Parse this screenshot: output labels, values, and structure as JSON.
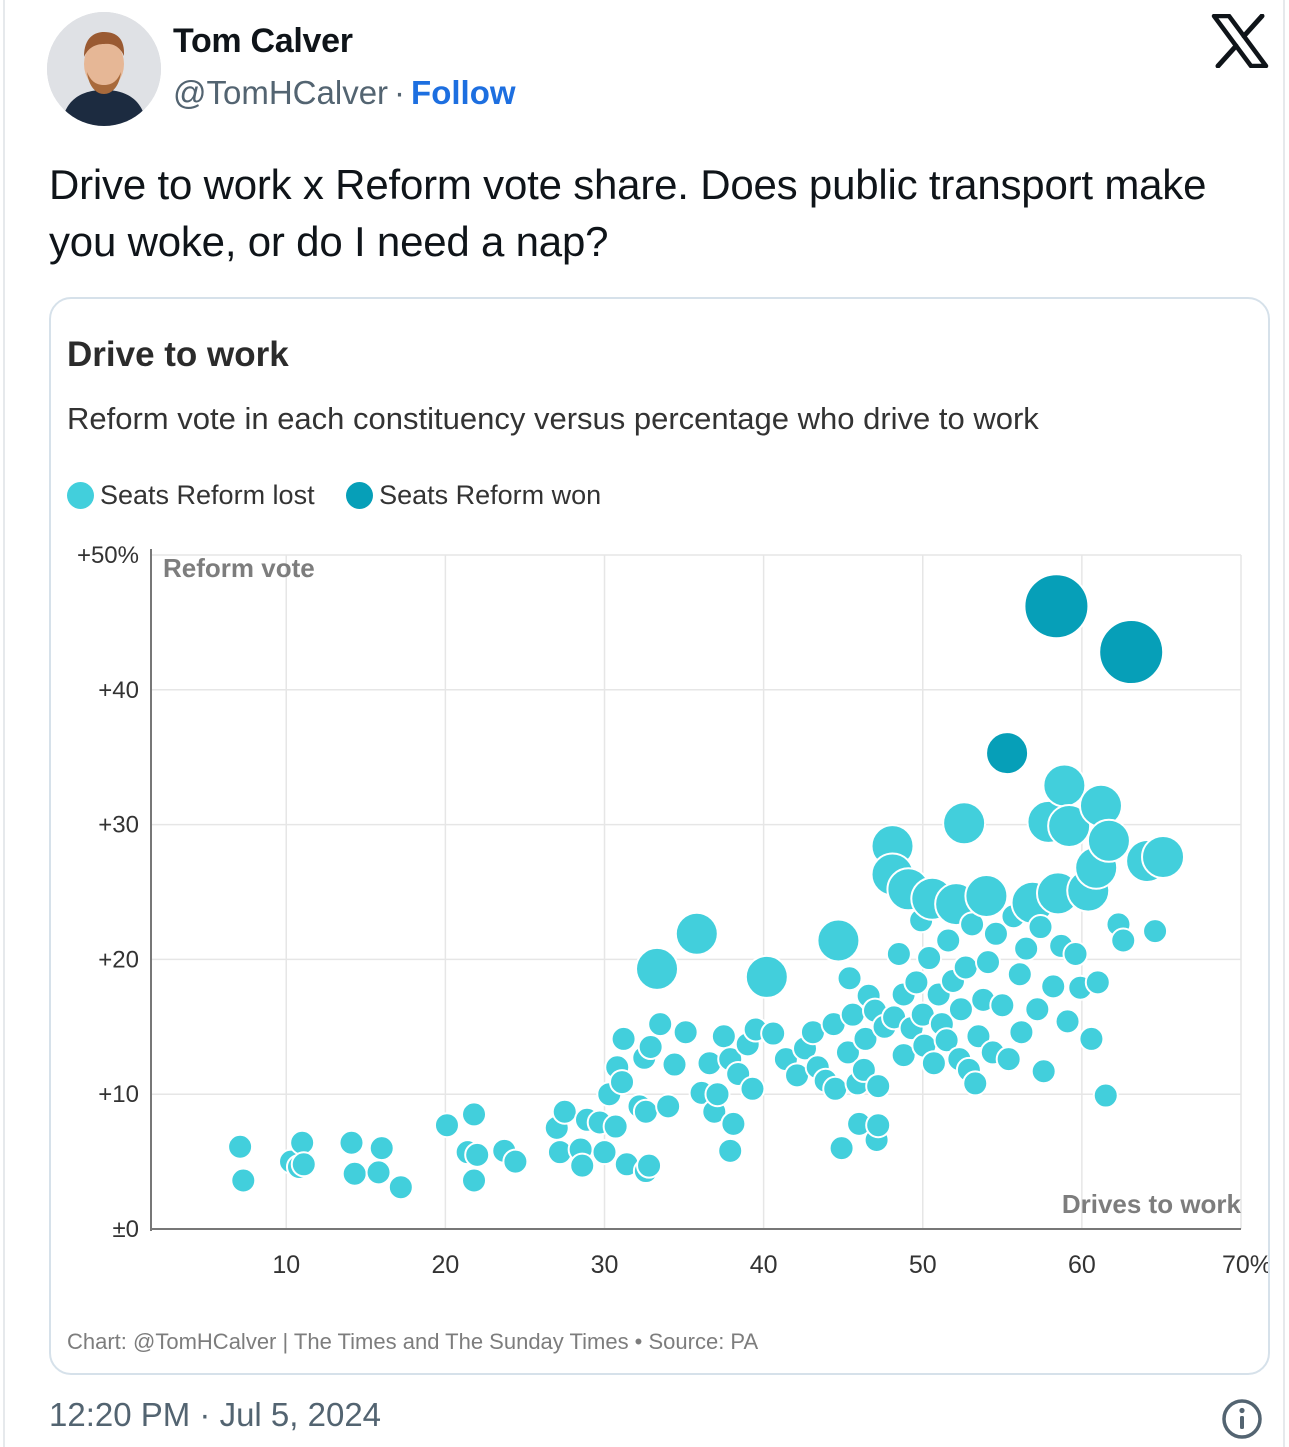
{
  "author": {
    "name": "Tom Calver",
    "handle": "@TomHCalver",
    "separator": "·",
    "follow_label": "Follow"
  },
  "tweet": {
    "text": "Drive to work x Reform vote share. Does public transport make you woke, or do I need a nap?",
    "timestamp": "12:20 PM · Jul 5, 2024"
  },
  "icons": {
    "brand": "x-logo-icon",
    "info": "info-icon"
  },
  "colors": {
    "follow": "#1d6fe0",
    "seats_lost": "#42cfdc",
    "seats_won": "#069fb8"
  },
  "chart_credit": "Chart: @TomHCalver | The Times and The Sunday Times • Source: PA",
  "chart_data": {
    "type": "scatter",
    "title": "Drive to work",
    "subtitle": "Reform vote in each constituency versus percentage who drive to work",
    "xlabel": "Drives to work",
    "ylabel": "Reform vote",
    "xlim": [
      1.5,
      70
    ],
    "ylim": [
      0,
      50
    ],
    "x_ticks": [
      "10",
      "20",
      "30",
      "40",
      "50",
      "60",
      "70%"
    ],
    "x_tick_values": [
      10,
      20,
      30,
      40,
      50,
      60,
      70
    ],
    "y_ticks": [
      "±0",
      "+10",
      "+20",
      "+30",
      "+40",
      "+50%"
    ],
    "y_tick_values": [
      0,
      10,
      20,
      30,
      40,
      50
    ],
    "grid": true,
    "legend_position": "top-left",
    "series": [
      {
        "name": "Seats Reform lost",
        "points": [
          [
            7.1,
            6.1,
            1
          ],
          [
            7.3,
            3.6,
            1
          ],
          [
            10.3,
            5.0,
            1
          ],
          [
            10.8,
            4.6,
            1
          ],
          [
            11.0,
            6.4,
            1
          ],
          [
            11.1,
            4.8,
            1
          ],
          [
            14.1,
            6.4,
            1
          ],
          [
            14.3,
            4.1,
            1
          ],
          [
            15.8,
            4.2,
            1
          ],
          [
            16.0,
            6.0,
            1
          ],
          [
            17.2,
            3.1,
            1
          ],
          [
            20.1,
            7.7,
            1
          ],
          [
            21.4,
            5.7,
            1
          ],
          [
            21.8,
            8.5,
            1
          ],
          [
            21.8,
            3.6,
            1
          ],
          [
            22.0,
            5.5,
            1
          ],
          [
            23.7,
            5.8,
            1
          ],
          [
            24.4,
            5.0,
            1
          ],
          [
            27.0,
            7.5,
            1
          ],
          [
            27.2,
            5.7,
            1
          ],
          [
            27.5,
            8.7,
            1
          ],
          [
            28.5,
            5.9,
            1
          ],
          [
            28.6,
            4.7,
            1
          ],
          [
            28.9,
            8.1,
            1
          ],
          [
            29.7,
            7.9,
            1
          ],
          [
            30.0,
            5.7,
            1
          ],
          [
            30.3,
            10.0,
            1
          ],
          [
            30.7,
            7.6,
            1
          ],
          [
            30.8,
            12.0,
            1
          ],
          [
            31.1,
            10.9,
            1
          ],
          [
            31.2,
            14.1,
            1
          ],
          [
            31.4,
            4.8,
            1
          ],
          [
            32.6,
            4.3,
            1
          ],
          [
            32.8,
            4.7,
            1
          ],
          [
            32.2,
            9.1,
            1
          ],
          [
            32.5,
            12.7,
            1
          ],
          [
            32.6,
            8.7,
            1
          ],
          [
            32.9,
            13.5,
            1
          ],
          [
            33.3,
            19.3,
            2
          ],
          [
            33.5,
            15.2,
            1
          ],
          [
            34.0,
            9.1,
            1
          ],
          [
            34.4,
            12.2,
            1
          ],
          [
            35.1,
            14.6,
            1
          ],
          [
            35.8,
            21.9,
            2
          ],
          [
            36.1,
            10.1,
            1
          ],
          [
            36.6,
            12.3,
            1
          ],
          [
            36.9,
            8.7,
            1
          ],
          [
            37.1,
            10.0,
            1
          ],
          [
            37.5,
            14.3,
            1
          ],
          [
            37.9,
            12.6,
            1
          ],
          [
            37.9,
            5.8,
            1
          ],
          [
            38.1,
            7.8,
            1
          ],
          [
            38.4,
            11.5,
            1
          ],
          [
            39.0,
            13.7,
            1
          ],
          [
            39.3,
            10.4,
            1
          ],
          [
            39.5,
            14.8,
            1
          ],
          [
            40.2,
            18.7,
            2
          ],
          [
            40.6,
            14.5,
            1
          ],
          [
            41.4,
            12.6,
            1
          ],
          [
            42.1,
            11.4,
            1
          ],
          [
            42.6,
            13.4,
            1
          ],
          [
            43.1,
            14.6,
            1
          ],
          [
            43.4,
            12.0,
            1
          ],
          [
            43.9,
            11.0,
            1
          ],
          [
            44.4,
            15.2,
            1
          ],
          [
            44.5,
            10.4,
            1
          ],
          [
            44.7,
            21.4,
            2
          ],
          [
            44.9,
            6.0,
            1
          ],
          [
            45.3,
            13.1,
            1
          ],
          [
            45.4,
            18.6,
            1
          ],
          [
            45.6,
            15.9,
            1
          ],
          [
            45.9,
            10.8,
            1
          ],
          [
            46.0,
            7.8,
            1
          ],
          [
            46.3,
            11.8,
            1
          ],
          [
            46.4,
            14.1,
            1
          ],
          [
            46.6,
            17.3,
            1
          ],
          [
            47.0,
            16.2,
            1
          ],
          [
            47.1,
            6.6,
            1
          ],
          [
            47.2,
            7.7,
            1
          ],
          [
            47.2,
            10.6,
            1
          ],
          [
            47.6,
            15.0,
            1
          ],
          [
            48.1,
            28.4,
            2
          ],
          [
            48.1,
            26.3,
            2
          ],
          [
            48.2,
            15.7,
            1
          ],
          [
            48.5,
            20.4,
            1
          ],
          [
            48.8,
            12.9,
            1
          ],
          [
            48.8,
            17.4,
            1
          ],
          [
            49.1,
            25.2,
            2
          ],
          [
            49.3,
            14.9,
            1
          ],
          [
            49.6,
            18.3,
            1
          ],
          [
            49.9,
            22.9,
            1
          ],
          [
            50.0,
            15.9,
            1
          ],
          [
            50.1,
            13.6,
            1
          ],
          [
            50.4,
            20.1,
            1
          ],
          [
            50.6,
            24.5,
            2
          ],
          [
            50.7,
            12.3,
            1
          ],
          [
            51.0,
            17.4,
            1
          ],
          [
            51.2,
            15.2,
            1
          ],
          [
            51.5,
            14.0,
            1
          ],
          [
            51.6,
            21.4,
            1
          ],
          [
            51.9,
            18.4,
            1
          ],
          [
            52.1,
            24.1,
            2
          ],
          [
            52.3,
            12.6,
            1
          ],
          [
            52.4,
            16.3,
            1
          ],
          [
            52.6,
            30.1,
            2
          ],
          [
            52.7,
            19.4,
            1
          ],
          [
            52.9,
            11.8,
            1
          ],
          [
            53.1,
            22.6,
            1
          ],
          [
            53.3,
            10.8,
            1
          ],
          [
            53.5,
            14.3,
            1
          ],
          [
            53.8,
            17.0,
            1
          ],
          [
            54.0,
            24.7,
            2
          ],
          [
            54.1,
            19.8,
            1
          ],
          [
            54.4,
            13.1,
            1
          ],
          [
            54.6,
            21.9,
            1
          ],
          [
            55.0,
            16.6,
            1
          ],
          [
            55.4,
            12.6,
            1
          ],
          [
            55.7,
            23.2,
            1
          ],
          [
            56.1,
            18.9,
            1
          ],
          [
            56.2,
            14.6,
            1
          ],
          [
            56.5,
            20.8,
            1
          ],
          [
            56.9,
            24.2,
            2
          ],
          [
            57.2,
            16.3,
            1
          ],
          [
            57.4,
            22.4,
            1
          ],
          [
            57.6,
            11.7,
            1
          ],
          [
            57.9,
            30.2,
            2
          ],
          [
            58.2,
            18.0,
            1
          ],
          [
            58.5,
            24.9,
            2
          ],
          [
            58.7,
            21.0,
            1
          ],
          [
            58.9,
            32.9,
            2
          ],
          [
            59.1,
            15.4,
            1
          ],
          [
            59.2,
            29.9,
            2
          ],
          [
            59.6,
            20.4,
            1
          ],
          [
            59.9,
            17.9,
            1
          ],
          [
            60.4,
            25.1,
            2
          ],
          [
            60.6,
            14.1,
            1
          ],
          [
            60.9,
            26.8,
            2
          ],
          [
            61.0,
            18.3,
            1
          ],
          [
            61.2,
            31.4,
            2
          ],
          [
            61.5,
            9.9,
            1
          ],
          [
            61.7,
            28.8,
            2
          ],
          [
            62.3,
            22.6,
            1
          ],
          [
            62.6,
            21.4,
            1
          ],
          [
            64.1,
            27.3,
            2
          ],
          [
            64.6,
            22.1,
            1
          ],
          [
            65.1,
            27.6,
            2
          ]
        ]
      },
      {
        "name": "Seats Reform won",
        "points": [
          [
            55.3,
            35.3,
            2
          ],
          [
            58.4,
            46.2,
            3
          ],
          [
            63.1,
            42.8,
            3
          ]
        ]
      }
    ]
  }
}
